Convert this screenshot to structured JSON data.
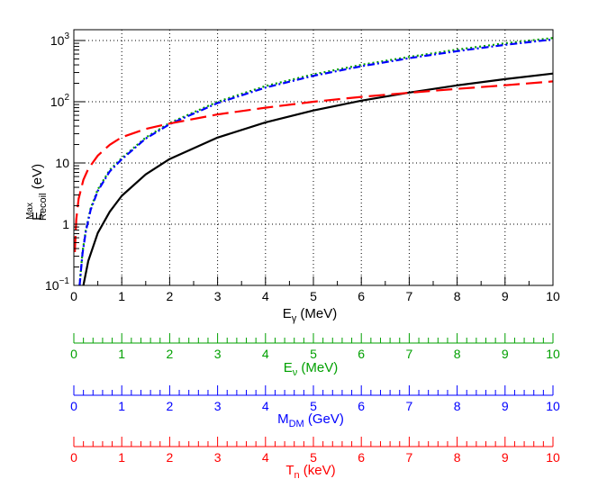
{
  "chart_data": {
    "type": "line",
    "x_range": [
      0,
      10
    ],
    "y_range": [
      0.1,
      1500
    ],
    "y_scale": "log",
    "grid": true,
    "x_ticks": [
      "0",
      "1",
      "2",
      "3",
      "4",
      "5",
      "6",
      "7",
      "8",
      "9",
      "10"
    ],
    "y_ticks": [
      {
        "value": 0.1,
        "base": "10",
        "exp": "−1"
      },
      {
        "value": 1,
        "base": "1",
        "exp": ""
      },
      {
        "value": 10,
        "base": "10",
        "exp": ""
      },
      {
        "value": 100,
        "base": "10",
        "exp": "2"
      },
      {
        "value": 1000,
        "base": "10",
        "exp": "3"
      }
    ],
    "ylabel": {
      "main": "E",
      "sup": "Max",
      "sub": "Recoil",
      "unit": " (eV)"
    },
    "xlabel": {
      "main": "E",
      "sub": "γ",
      "unit": " (MeV)"
    },
    "series": [
      {
        "color": "#000000",
        "style": "solid",
        "x": [
          0.2,
          0.3,
          0.5,
          0.75,
          1,
          1.5,
          2,
          3,
          4,
          5,
          6,
          7,
          8,
          9,
          10
        ],
        "y": [
          0.1,
          0.25,
          0.72,
          1.6,
          2.9,
          6.5,
          11.6,
          26,
          46,
          72,
          104,
          141,
          185,
          234,
          288
        ]
      },
      {
        "color": "#00a000",
        "style": "dotted",
        "x": [
          0.12,
          0.18,
          0.25,
          0.35,
          0.5,
          0.75,
          1,
          1.5,
          2,
          3,
          4,
          5,
          6,
          7,
          8,
          9,
          10
        ],
        "y": [
          0.1,
          0.35,
          0.8,
          1.8,
          3.7,
          7.7,
          12,
          26,
          45,
          100,
          180,
          280,
          400,
          540,
          710,
          900,
          1100
        ]
      },
      {
        "color": "#0000ff",
        "style": "dashdot",
        "x": [
          0.12,
          0.18,
          0.25,
          0.35,
          0.5,
          0.75,
          1,
          1.5,
          2,
          3,
          4,
          5,
          6,
          7,
          8,
          9,
          10
        ],
        "y": [
          0.1,
          0.33,
          0.76,
          1.7,
          3.5,
          7.3,
          11.5,
          25,
          43,
          95,
          170,
          265,
          380,
          515,
          670,
          850,
          1040
        ]
      },
      {
        "color": "#ff0000",
        "style": "longdash",
        "x": [
          0.02,
          0.05,
          0.1,
          0.2,
          0.3,
          0.5,
          0.75,
          1,
          1.5,
          2,
          3,
          4,
          5,
          6,
          7,
          8,
          9,
          10
        ],
        "y": [
          0.35,
          1.2,
          2.6,
          5.3,
          8.0,
          13.2,
          19.8,
          26.3,
          36,
          44,
          62,
          80,
          100,
          120,
          140,
          162,
          186,
          215
        ]
      }
    ],
    "secondary_axes": [
      {
        "color": "#00a000",
        "ticks": [
          "0",
          "1",
          "2",
          "3",
          "4",
          "5",
          "6",
          "7",
          "8",
          "9",
          "10"
        ],
        "label": {
          "main": "E",
          "sub": "ν",
          "unit": " (MeV)"
        }
      },
      {
        "color": "#0000ff",
        "ticks": [
          "0",
          "1",
          "2",
          "3",
          "4",
          "5",
          "6",
          "7",
          "8",
          "9",
          "10"
        ],
        "label": {
          "main": "M",
          "sub": "DM",
          "unit": " (GeV)"
        }
      },
      {
        "color": "#ff0000",
        "ticks": [
          "0",
          "1",
          "2",
          "3",
          "4",
          "5",
          "6",
          "7",
          "8",
          "9",
          "10"
        ],
        "label": {
          "main": "T",
          "sub": "n",
          "unit": " (keV)"
        }
      }
    ]
  }
}
